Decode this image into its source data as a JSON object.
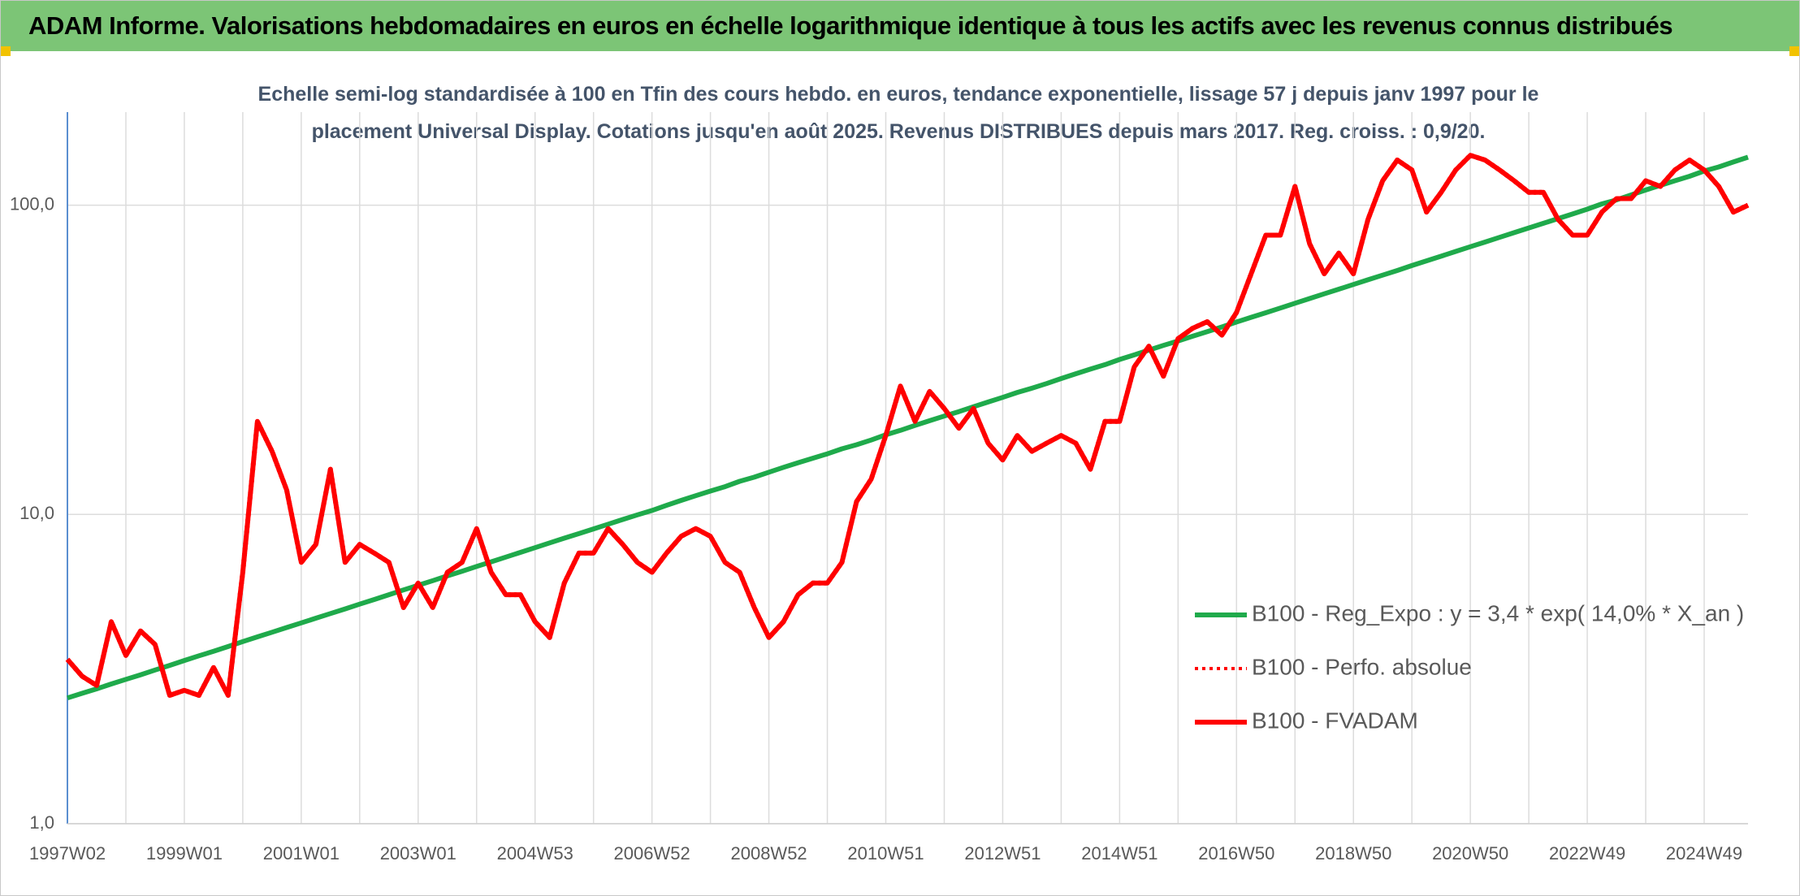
{
  "chart_data": {
    "type": "line",
    "title": "ADAM Informe. Valorisations hebdomadaires en euros en échelle logarithmique identique à tous les actifs avec les revenus connus distribués",
    "subtitle": "Echelle semi-log standardisée à 100 en Tfin des cours hebdo. en euros, tendance exponentielle, lissage 57 j depuis janv 1997 pour le placement Universal Display. Cotations jusqu'en août 2025. Revenus DISTRIBUES depuis mars 2017. Reg. croiss. : 0,9/20.",
    "log_scale": true,
    "grid": true,
    "legend": "right",
    "ylim": [
      1,
      200
    ],
    "yticks": [
      {
        "value": 1,
        "label": "1,0"
      },
      {
        "value": 10,
        "label": "10,0"
      },
      {
        "value": 100,
        "label": "100,0"
      }
    ],
    "categories": [
      "1997W02",
      null,
      null,
      null,
      null,
      null,
      null,
      null,
      "1999W01",
      null,
      null,
      null,
      null,
      null,
      null,
      null,
      "2001W01",
      null,
      null,
      null,
      null,
      null,
      null,
      null,
      "2003W01",
      null,
      null,
      null,
      null,
      null,
      null,
      null,
      "2004W53",
      null,
      null,
      null,
      null,
      null,
      null,
      null,
      "2006W52",
      null,
      null,
      null,
      null,
      null,
      null,
      null,
      "2008W52",
      null,
      null,
      null,
      null,
      null,
      null,
      null,
      "2010W51",
      null,
      null,
      null,
      null,
      null,
      null,
      null,
      "2012W51",
      null,
      null,
      null,
      null,
      null,
      null,
      null,
      "2014W51",
      null,
      null,
      null,
      null,
      null,
      null,
      null,
      "2016W50",
      null,
      null,
      null,
      null,
      null,
      null,
      null,
      "2018W50",
      null,
      null,
      null,
      null,
      null,
      null,
      null,
      "2020W50",
      null,
      null,
      null,
      null,
      null,
      null,
      null,
      "2022W49",
      null,
      null,
      null,
      null,
      null,
      null,
      null,
      "2024W49",
      null,
      null,
      null
    ],
    "series": [
      {
        "name": "B100 - Reg_Expo : y = 3,4 * exp( 14,0% *  X_an )",
        "color": "#1faa4b",
        "style": "solid",
        "values": [
          2.55,
          2.64,
          2.73,
          2.83,
          2.93,
          3.03,
          3.14,
          3.25,
          3.37,
          3.49,
          3.61,
          3.74,
          3.88,
          4.02,
          4.16,
          4.31,
          4.46,
          4.62,
          4.78,
          4.95,
          5.13,
          5.31,
          5.5,
          5.7,
          5.9,
          6.11,
          6.33,
          6.55,
          6.79,
          7.03,
          7.28,
          7.54,
          7.81,
          8.09,
          8.38,
          8.67,
          8.98,
          9.3,
          9.63,
          9.97,
          10.3,
          10.7,
          11.1,
          11.5,
          11.9,
          12.3,
          12.8,
          13.2,
          13.7,
          14.2,
          14.7,
          15.2,
          15.7,
          16.3,
          16.8,
          17.4,
          18.1,
          18.7,
          19.4,
          20.1,
          20.8,
          21.5,
          22.3,
          23.1,
          23.9,
          24.8,
          25.6,
          26.5,
          27.5,
          28.5,
          29.5,
          30.5,
          31.7,
          32.8,
          34,
          35.2,
          36.4,
          37.7,
          39,
          40.4,
          41.9,
          43.4,
          44.9,
          46.5,
          48.2,
          49.9,
          51.7,
          53.5,
          55.4,
          57.4,
          59.4,
          61.5,
          63.8,
          66.1,
          68.4,
          70.9,
          73.4,
          76,
          78.7,
          81.5,
          84.4,
          87.4,
          90.5,
          93.7,
          97.1,
          101,
          104,
          108,
          112,
          116,
          120,
          124,
          129,
          133,
          138,
          143
        ]
      },
      {
        "name": "B100 - Perfo. absolue",
        "color": "#ff0000",
        "style": "dotted",
        "values": [
          3.4,
          3.0,
          2.8,
          4.5,
          3.5,
          4.2,
          3.8,
          2.6,
          2.7,
          2.6,
          3.2,
          2.6,
          6.5,
          20,
          16,
          12,
          7,
          8,
          14,
          7,
          8,
          7.5,
          7,
          5,
          6,
          5,
          6.5,
          7,
          9,
          6.5,
          5.5,
          5.5,
          4.5,
          4,
          6,
          7.5,
          7.5,
          9,
          8,
          7,
          6.5,
          7.5,
          8.5,
          9,
          8.5,
          7,
          6.5,
          5,
          4,
          4.5,
          5.5,
          6,
          6,
          7,
          11,
          13,
          18,
          26,
          20,
          25,
          22,
          19,
          22,
          17,
          15,
          18,
          16,
          17,
          18,
          17,
          14,
          20,
          20,
          30,
          35,
          28,
          37,
          40,
          42,
          38,
          45,
          60,
          80,
          80,
          115,
          75,
          60,
          70,
          60,
          90,
          120,
          140,
          130,
          95,
          110,
          130,
          145,
          140,
          130,
          120,
          110,
          110,
          90,
          80,
          80,
          95,
          105,
          105,
          120,
          115,
          130,
          140,
          130,
          115,
          95,
          100
        ]
      },
      {
        "name": "B100 - FVADAM",
        "color": "#ff0000",
        "style": "solid",
        "values": [
          3.4,
          3.0,
          2.8,
          4.5,
          3.5,
          4.2,
          3.8,
          2.6,
          2.7,
          2.6,
          3.2,
          2.6,
          6.5,
          20,
          16,
          12,
          7,
          8,
          14,
          7,
          8,
          7.5,
          7,
          5,
          6,
          5,
          6.5,
          7,
          9,
          6.5,
          5.5,
          5.5,
          4.5,
          4,
          6,
          7.5,
          7.5,
          9,
          8,
          7,
          6.5,
          7.5,
          8.5,
          9,
          8.5,
          7,
          6.5,
          5,
          4,
          4.5,
          5.5,
          6,
          6,
          7,
          11,
          13,
          18,
          26,
          20,
          25,
          22,
          19,
          22,
          17,
          15,
          18,
          16,
          17,
          18,
          17,
          14,
          20,
          20,
          30,
          35,
          28,
          37,
          40,
          42,
          38,
          45,
          60,
          80,
          80,
          115,
          75,
          60,
          70,
          60,
          90,
          120,
          140,
          130,
          95,
          110,
          130,
          145,
          140,
          130,
          120,
          110,
          110,
          90,
          80,
          80,
          95,
          105,
          105,
          120,
          115,
          130,
          140,
          130,
          115,
          95,
          100
        ]
      }
    ]
  }
}
